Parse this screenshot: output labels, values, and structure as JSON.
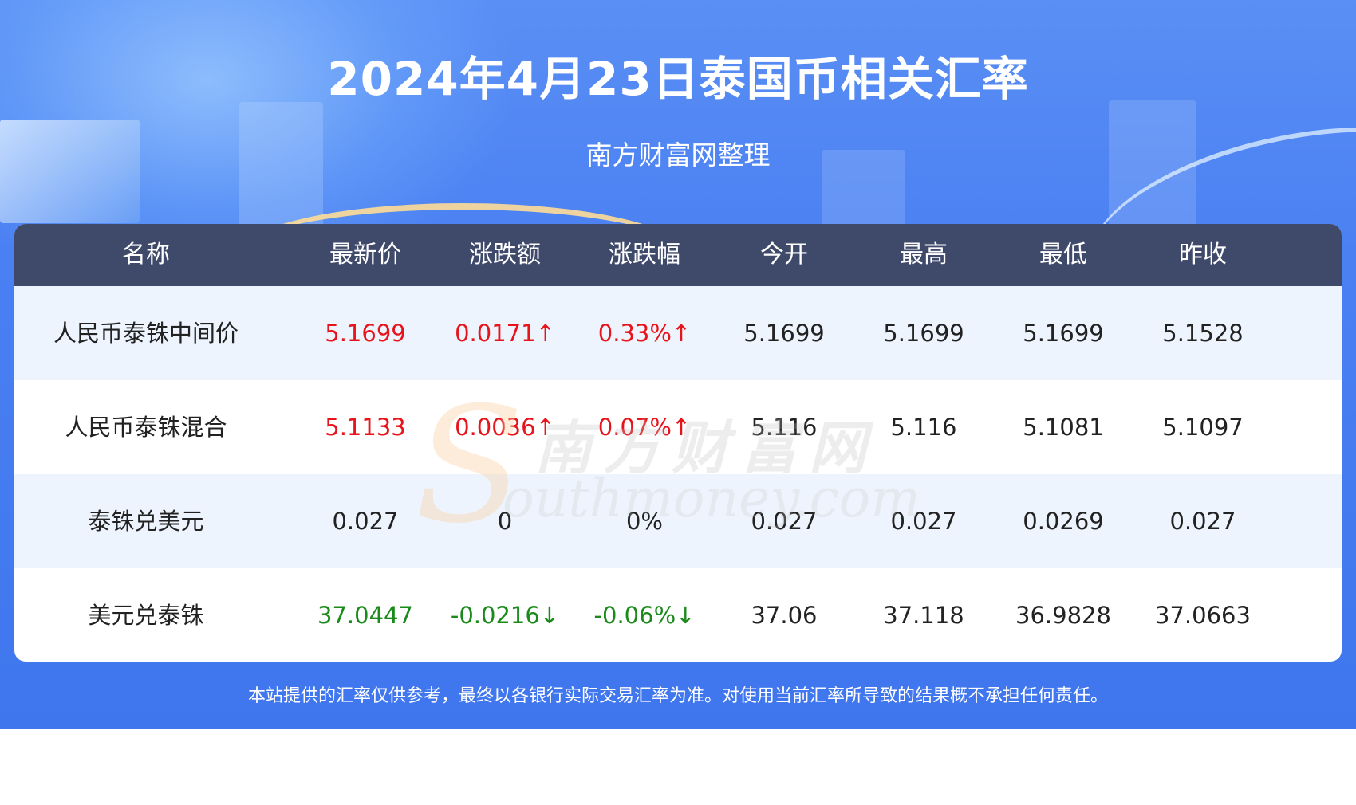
{
  "header": {
    "title": "2024年4月23日泰国币相关汇率",
    "subtitle": "南方财富网整理"
  },
  "table": {
    "columns": [
      "名称",
      "最新价",
      "涨跌额",
      "涨跌幅",
      "今开",
      "最高",
      "最低",
      "昨收"
    ],
    "rows": [
      {
        "name": "人民币泰铢中间价",
        "latest": "5.1699",
        "change": "0.0171↑",
        "change_pct": "0.33%↑",
        "open": "5.1699",
        "high": "5.1699",
        "low": "5.1699",
        "prev_close": "5.1528",
        "trend": "up"
      },
      {
        "name": "人民币泰铢混合",
        "latest": "5.1133",
        "change": "0.0036↑",
        "change_pct": "0.07%↑",
        "open": "5.116",
        "high": "5.116",
        "low": "5.1081",
        "prev_close": "5.1097",
        "trend": "up"
      },
      {
        "name": "泰铢兑美元",
        "latest": "0.027",
        "change": "0",
        "change_pct": "0%",
        "open": "0.027",
        "high": "0.027",
        "low": "0.0269",
        "prev_close": "0.027",
        "trend": "flat"
      },
      {
        "name": "美元兑泰铢",
        "latest": "37.0447",
        "change": "-0.0216↓",
        "change_pct": "-0.06%↓",
        "open": "37.06",
        "high": "37.118",
        "low": "36.9828",
        "prev_close": "37.0663",
        "trend": "down"
      }
    ]
  },
  "watermark": {
    "letter": "S",
    "cn": "南方财富网",
    "en": "outhmoney.com"
  },
  "footer": {
    "disclaimer": "本站提供的汇率仅供参考，最终以各银行实际交易汇率为准。对使用当前汇率所导致的结果概不承担任何责任。"
  },
  "colors": {
    "banner": "#4a80f2",
    "header_row": "#3f4a6b",
    "alt_row": "#eef4fd",
    "up": "#e8141b",
    "down": "#1a8a1a"
  }
}
